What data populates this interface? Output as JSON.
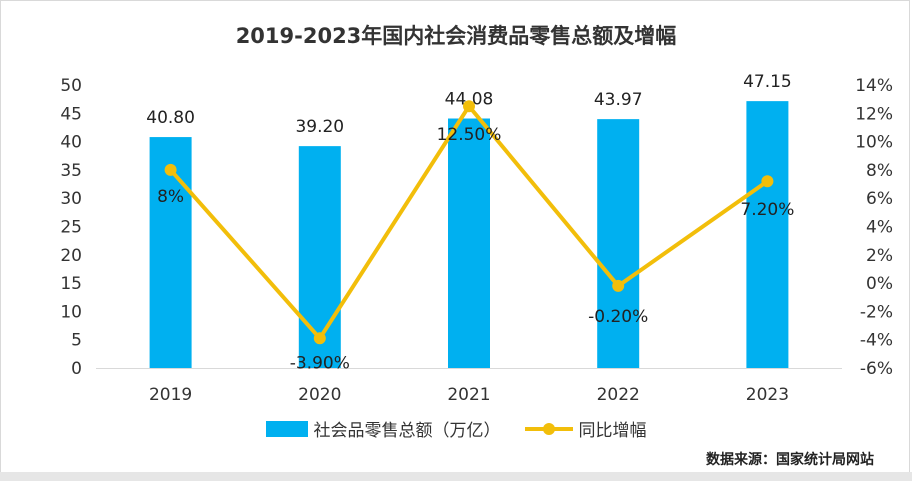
{
  "chart_data": {
    "type": "bar",
    "title": "2019-2023年国内社会消费品零售总额及增幅",
    "categories": [
      "2019",
      "2020",
      "2021",
      "2022",
      "2023"
    ],
    "series": [
      {
        "name": "社会品零售总额（万亿）",
        "type": "bar",
        "axis": "left",
        "color": "#00B0F0",
        "values": [
          40.8,
          39.2,
          44.08,
          43.97,
          47.15
        ],
        "labels": [
          "40.80",
          "39.20",
          "44.08",
          "43.97",
          "47.15"
        ]
      },
      {
        "name": "同比增幅",
        "type": "line",
        "axis": "right",
        "color": "#F2BE0A",
        "values": [
          8,
          -3.9,
          12.5,
          -0.2,
          7.2
        ],
        "labels": [
          "8%",
          "-3.90%",
          "12.50%",
          "-0.20%",
          "7.20%"
        ]
      }
    ],
    "y_left": {
      "min": 0,
      "max": 50,
      "ticks": [
        "0",
        "5",
        "10",
        "15",
        "20",
        "25",
        "30",
        "35",
        "40",
        "45",
        "50"
      ]
    },
    "y_right": {
      "min": -6,
      "max": 14,
      "ticks": [
        "-6%",
        "-4%",
        "-2%",
        "0%",
        "2%",
        "4%",
        "6%",
        "8%",
        "10%",
        "12%",
        "14%"
      ]
    },
    "grid": false,
    "legend": "bottom",
    "source": "数据来源：国家统计局网站"
  }
}
